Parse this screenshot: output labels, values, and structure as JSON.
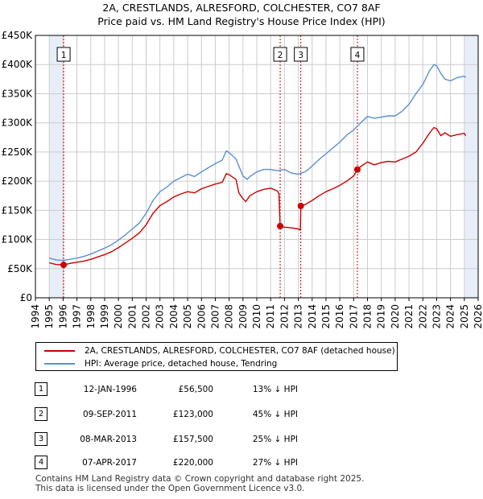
{
  "colors": {
    "property": "#cc0000",
    "hpi": "#5b8fd0",
    "shade": "#e8eef8"
  },
  "chart_data": {
    "type": "line",
    "title": "2A, CRESTLANDS, ALRESFORD, COLCHESTER, CO7 8AF",
    "subtitle": "Price paid vs. HM Land Registry's House Price Index (HPI)",
    "xlabel": "",
    "ylabel": "",
    "xlim": [
      1994,
      2026
    ],
    "ylim": [
      0,
      450000
    ],
    "x_ticks": [
      1994,
      1995,
      1996,
      1997,
      1998,
      1999,
      2000,
      2001,
      2002,
      2003,
      2004,
      2005,
      2006,
      2007,
      2008,
      2009,
      2010,
      2011,
      2012,
      2013,
      2014,
      2015,
      2016,
      2017,
      2018,
      2019,
      2020,
      2021,
      2022,
      2023,
      2024,
      2025,
      2026
    ],
    "y_ticks": [
      0,
      50000,
      100000,
      150000,
      200000,
      250000,
      300000,
      350000,
      400000,
      450000
    ],
    "y_tick_labels": [
      "£0",
      "£50K",
      "£100K",
      "£150K",
      "£200K",
      "£250K",
      "£300K",
      "£350K",
      "£400K",
      "£450K"
    ],
    "shaded_ranges": [
      [
        1995.0,
        1996.04
      ],
      [
        2025.0,
        2026.0
      ]
    ],
    "events": [
      {
        "label": "1",
        "x": 1996.04
      },
      {
        "label": "2",
        "x": 2011.69
      },
      {
        "label": "3",
        "x": 2013.18
      },
      {
        "label": "4",
        "x": 2017.27
      }
    ],
    "sale_points": [
      {
        "x": 1996.04,
        "y": 56500
      },
      {
        "x": 2011.69,
        "y": 123000
      },
      {
        "x": 2013.18,
        "y": 157500
      },
      {
        "x": 2017.27,
        "y": 220000
      }
    ],
    "series": [
      {
        "name": "2A, CRESTLANDS, ALRESFORD, COLCHESTER, CO7 8AF (detached house)",
        "color_key": "property",
        "x": [
          1995.0,
          1995.5,
          1996.04,
          1996.5,
          1997,
          1997.5,
          1998,
          1998.5,
          1999,
          1999.5,
          2000,
          2000.5,
          2001,
          2001.5,
          2002,
          2002.5,
          2003,
          2003.5,
          2004,
          2004.5,
          2005,
          2005.5,
          2006,
          2006.5,
          2007,
          2007.5,
          2007.8,
          2008,
          2008.5,
          2008.7,
          2009,
          2009.2,
          2009.5,
          2010,
          2010.5,
          2011,
          2011.5,
          2011.6,
          2011.69,
          2011.8,
          2012,
          2012.5,
          2013,
          2013.15,
          2013.18,
          2013.5,
          2014,
          2014.5,
          2015,
          2015.5,
          2016,
          2016.5,
          2017,
          2017.27,
          2017.5,
          2018,
          2018.5,
          2019,
          2019.5,
          2020,
          2020.5,
          2021,
          2021.5,
          2022,
          2022.5,
          2022.8,
          2023,
          2023.3,
          2023.6,
          2024,
          2024.5,
          2025,
          2025.1
        ],
        "y": [
          60000,
          57000,
          56500,
          59000,
          61000,
          63000,
          66000,
          70000,
          74000,
          79000,
          86000,
          94000,
          102000,
          111000,
          125000,
          145000,
          158000,
          165000,
          173000,
          178000,
          182000,
          180000,
          187000,
          191000,
          195000,
          198000,
          213000,
          211000,
          203000,
          180000,
          170000,
          165000,
          175000,
          182000,
          186000,
          188000,
          183000,
          178000,
          123000,
          122000,
          121000,
          120000,
          118000,
          116000,
          157500,
          160000,
          167000,
          175000,
          182000,
          187000,
          193000,
          200000,
          209000,
          220000,
          225000,
          233000,
          228000,
          232000,
          234000,
          233000,
          238000,
          243000,
          250000,
          265000,
          283000,
          292000,
          290000,
          278000,
          283000,
          277000,
          280000,
          282000,
          278000
        ]
      },
      {
        "name": "HPI: Average price, detached house, Tendring",
        "color_key": "hpi",
        "x": [
          1995.0,
          1995.5,
          1996,
          1996.5,
          1997,
          1997.5,
          1998,
          1998.5,
          1999,
          1999.5,
          2000,
          2000.5,
          2001,
          2001.5,
          2002,
          2002.5,
          2003,
          2003.5,
          2004,
          2004.5,
          2005,
          2005.5,
          2006,
          2006.5,
          2007,
          2007.5,
          2007.8,
          2008,
          2008.5,
          2009,
          2009.3,
          2009.5,
          2010,
          2010.5,
          2011,
          2011.5,
          2012,
          2012.5,
          2013,
          2013.5,
          2014,
          2014.5,
          2015,
          2015.5,
          2016,
          2016.5,
          2017,
          2017.5,
          2018,
          2018.5,
          2019,
          2019.5,
          2020,
          2020.5,
          2021,
          2021.5,
          2022,
          2022.5,
          2022.8,
          2023,
          2023.3,
          2023.6,
          2024,
          2024.5,
          2025,
          2025.1
        ],
        "y": [
          68000,
          65000,
          64000,
          66000,
          68000,
          71000,
          75000,
          80000,
          85000,
          91000,
          99000,
          108000,
          118000,
          128000,
          145000,
          167000,
          182000,
          190000,
          200000,
          206000,
          212000,
          208000,
          216000,
          223000,
          230000,
          236000,
          252000,
          249000,
          238000,
          209000,
          203000,
          208000,
          216000,
          220000,
          220000,
          218000,
          220000,
          214000,
          212000,
          216000,
          226000,
          237000,
          247000,
          257000,
          267000,
          279000,
          288000,
          300000,
          311000,
          308000,
          310000,
          312000,
          312000,
          320000,
          332000,
          350000,
          366000,
          390000,
          400000,
          398000,
          385000,
          375000,
          372000,
          378000,
          380000,
          378000
        ]
      }
    ]
  },
  "legend": {
    "property_label": "2A, CRESTLANDS, ALRESFORD, COLCHESTER, CO7 8AF (detached house)",
    "hpi_label": "HPI: Average price, detached house, Tendring"
  },
  "transactions": [
    {
      "num": "1",
      "date": "12-JAN-1996",
      "price": "£56,500",
      "hpi": "13% ↓ HPI"
    },
    {
      "num": "2",
      "date": "09-SEP-2011",
      "price": "£123,000",
      "hpi": "45% ↓ HPI"
    },
    {
      "num": "3",
      "date": "08-MAR-2013",
      "price": "£157,500",
      "hpi": "25% ↓ HPI"
    },
    {
      "num": "4",
      "date": "07-APR-2017",
      "price": "£220,000",
      "hpi": "27% ↓ HPI"
    }
  ],
  "footer": {
    "line1": "Contains HM Land Registry data © Crown copyright and database right 2025.",
    "line2": "This data is licensed under the Open Government Licence v3.0."
  }
}
